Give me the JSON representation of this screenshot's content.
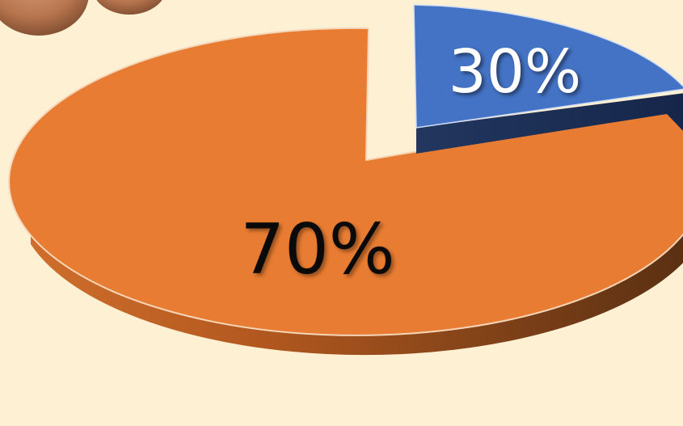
{
  "chart_data": {
    "type": "pie",
    "style": "3d-exploded",
    "slices": [
      {
        "label": "70%",
        "value": 70,
        "color": "#e87c32",
        "side_color_light": "#c8692b",
        "side_color_dark": "#5c3214",
        "label_color": "#0a0a0a"
      },
      {
        "label": "30%",
        "value": 30,
        "color": "#4472c4",
        "side_color_light": "#2c4f86",
        "side_color_dark": "#18294a",
        "label_color": "#ffffff"
      }
    ],
    "background_color": "#fdf0d3",
    "title": "",
    "legend": "none"
  },
  "decoration": {
    "icon": "egg-photo-icon"
  }
}
